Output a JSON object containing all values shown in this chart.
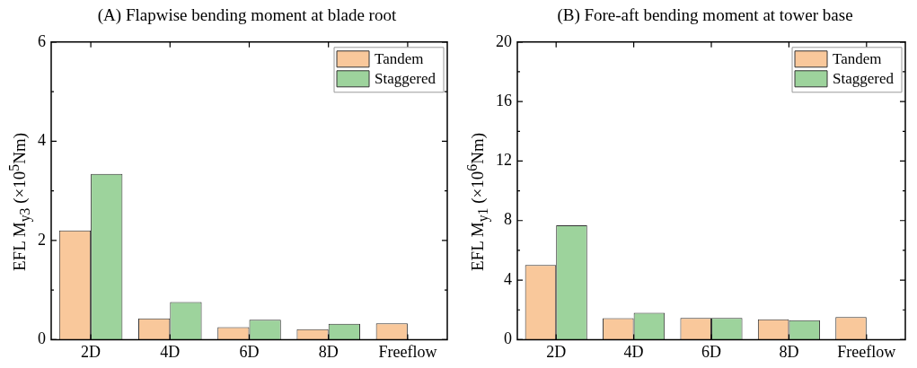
{
  "chart_data": [
    {
      "type": "bar",
      "title": "(A) Flapwise bending moment at blade root",
      "ylabel": "EFL M$_{y3}$ (×10$^{5}$Nm)",
      "categories": [
        "2D",
        "4D",
        "6D",
        "8D",
        "Freeflow"
      ],
      "series": [
        {
          "name": "Tandem",
          "color": "#f9c89b",
          "values": [
            2.2,
            0.43,
            0.25,
            0.21,
            0.33
          ]
        },
        {
          "name": "Staggered",
          "color": "#9dd39c",
          "values": [
            3.34,
            0.76,
            0.4,
            0.32,
            null
          ]
        }
      ],
      "ylim": [
        0,
        6
      ],
      "yticks": [
        0,
        {
          "value": 1,
          "label": null
        },
        2,
        {
          "value": 3,
          "label": null
        },
        4,
        {
          "value": 5,
          "label": null
        },
        6
      ],
      "grid": false,
      "legend": "top right"
    },
    {
      "type": "bar",
      "title": "(B) Fore-aft bending moment at tower base",
      "ylabel": "EFL M$_{y1}$ (×10$^{6}$Nm)",
      "categories": [
        "2D",
        "4D",
        "6D",
        "8D",
        "Freeflow"
      ],
      "series": [
        {
          "name": "Tandem",
          "color": "#f9c89b",
          "values": [
            5.01,
            1.44,
            1.46,
            1.36,
            1.51
          ]
        },
        {
          "name": "Staggered",
          "color": "#9dd39c",
          "values": [
            7.69,
            1.81,
            1.46,
            1.3,
            null
          ]
        }
      ],
      "ylim": [
        0,
        20
      ],
      "yticks": [
        0,
        {
          "value": 2,
          "label": null
        },
        4,
        {
          "value": 6,
          "label": null
        },
        8,
        {
          "value": 10,
          "label": null
        },
        12,
        {
          "value": 14,
          "label": null
        },
        16,
        {
          "value": 18,
          "label": null
        },
        20
      ],
      "grid": false,
      "legend": "top right"
    }
  ]
}
